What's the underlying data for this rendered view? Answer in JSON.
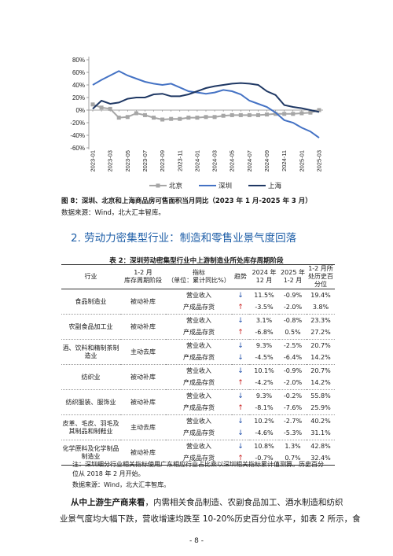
{
  "figure": {
    "caption": "图 8：深圳、北京和上海商品房可售面积当月同比（2023 年 1 月-2025 年 3 月）",
    "source": "数据来源：Wind，北大汇丰智库。"
  },
  "chart_data": {
    "type": "line",
    "x": [
      "2023-01",
      "2023-02",
      "2023-03",
      "2023-04",
      "2023-05",
      "2023-06",
      "2023-07",
      "2023-08",
      "2023-09",
      "2023-10",
      "2023-11",
      "2023-12",
      "2024-01",
      "2024-02",
      "2024-03",
      "2024-04",
      "2024-05",
      "2024-06",
      "2024-07",
      "2024-08",
      "2024-09",
      "2024-10",
      "2024-11",
      "2024-12",
      "2025-01",
      "2025-02",
      "2025-03"
    ],
    "x_tick_labels": [
      "2023-01",
      "2023-03",
      "2023-05",
      "2023-07",
      "2023-09",
      "2023-11",
      "2024-01",
      "2024-03",
      "2024-05",
      "2024-07",
      "2024-09",
      "2024-11",
      "2025-01",
      "2025-03"
    ],
    "ylim": [
      -60,
      80
    ],
    "y_ticks": [
      80,
      60,
      40,
      20,
      0,
      -20,
      -40,
      -60
    ],
    "y_tick_labels": [
      "80%",
      "60%",
      "40%",
      "20%",
      "0%",
      "-20%",
      "-40%",
      "-60%"
    ],
    "series": [
      {
        "name": "北京",
        "color": "#a6a6a6",
        "values": [
          9,
          4,
          2,
          -12,
          -11,
          -5,
          -8,
          -12,
          -15,
          -14,
          -14,
          -12,
          -12,
          -11,
          -11,
          -9,
          -8,
          -8,
          -8,
          -8,
          -7,
          -6,
          -6,
          -6,
          -5,
          -4,
          0
        ]
      },
      {
        "name": "深圳",
        "color": "#4472c4",
        "values": [
          40,
          48,
          55,
          62,
          55,
          50,
          45,
          42,
          40,
          42,
          36,
          30,
          28,
          26,
          28,
          32,
          30,
          25,
          15,
          10,
          5,
          -4,
          -16,
          -20,
          -28,
          -34,
          -44
        ]
      },
      {
        "name": "上海",
        "color": "#1f3864",
        "values": [
          2,
          15,
          10,
          12,
          18,
          20,
          20,
          25,
          26,
          22,
          22,
          25,
          30,
          35,
          38,
          40,
          42,
          43,
          42,
          40,
          30,
          24,
          8,
          5,
          3,
          0,
          -3
        ]
      }
    ]
  },
  "section": {
    "title": "2. 劳动力密集型行业：制造和零售业景气度回落"
  },
  "table": {
    "title": "表 2：深圳劳动密集型行业中上游制造业所处库存周期阶段",
    "headers": {
      "industry": "行业",
      "cycle_line1": "1-2 月",
      "cycle_line2": "库存周期阶段",
      "indicator_line1": "指标",
      "indicator_line2": "（单位：累计同比%）",
      "trend": "趋势",
      "y2024_line1": "2024 年",
      "y2024_line2": "12 月",
      "y2025_line1": "2025 年",
      "y2025_line2": "1-2 月",
      "pct_line1": "1-2 月所处历史百",
      "pct_line2": "分位"
    },
    "groups": [
      {
        "industry": "食品制造业",
        "stage": "被动补库",
        "rows": [
          {
            "indicator": "营业收入",
            "trend": "↓",
            "v2024": "11.5%",
            "v2025": "-0.9%",
            "pct": "19.4%"
          },
          {
            "indicator": "产成品存货",
            "trend": "↑",
            "v2024": "-3.5%",
            "v2025": "-2.0%",
            "pct": "3.8%"
          }
        ]
      },
      {
        "industry": "农副食品加工业",
        "stage": "被动补库",
        "rows": [
          {
            "indicator": "营业收入",
            "trend": "↓",
            "v2024": "3.1%",
            "v2025": "-0.8%",
            "pct": "23.3%"
          },
          {
            "indicator": "产成品存货",
            "trend": "↑",
            "v2024": "-6.8%",
            "v2025": "0.5%",
            "pct": "27.2%"
          }
        ]
      },
      {
        "industry": "酒、饮料和精制茶制造业",
        "stage": "主动去库",
        "rows": [
          {
            "indicator": "营业收入",
            "trend": "↓",
            "v2024": "9.3%",
            "v2025": "-2.5%",
            "pct": "20.7%"
          },
          {
            "indicator": "产成品存货",
            "trend": "↓",
            "v2024": "-4.5%",
            "v2025": "-6.4%",
            "pct": "14.2%"
          }
        ]
      },
      {
        "industry": "纺织业",
        "stage": "被动补库",
        "rows": [
          {
            "indicator": "营业收入",
            "trend": "↓",
            "v2024": "10.1%",
            "v2025": "-0.9%",
            "pct": "20.7%"
          },
          {
            "indicator": "产成品存货",
            "trend": "↑",
            "v2024": "-4.2%",
            "v2025": "-2.0%",
            "pct": "14.2%"
          }
        ]
      },
      {
        "industry": "纺织服装、服饰业",
        "stage": "被动补库",
        "rows": [
          {
            "indicator": "营业收入",
            "trend": "↓",
            "v2024": "9.3%",
            "v2025": "-0.2%",
            "pct": "55.8%"
          },
          {
            "indicator": "产成品存货",
            "trend": "↑",
            "v2024": "-8.1%",
            "v2025": "-7.6%",
            "pct": "25.9%"
          }
        ]
      },
      {
        "industry": "皮革、毛皮、羽毛及其制品和制鞋业",
        "stage": "主动去库",
        "rows": [
          {
            "indicator": "营业收入",
            "trend": "↓",
            "v2024": "10.2%",
            "v2025": "-2.7%",
            "pct": "40.2%"
          },
          {
            "indicator": "产成品存货",
            "trend": "↓",
            "v2024": "-4.6%",
            "v2025": "-5.3%",
            "pct": "31.1%"
          }
        ]
      },
      {
        "industry": "化学原料及化学制品制造业",
        "stage": "被动补库",
        "rows": [
          {
            "indicator": "营业收入",
            "trend": "↓",
            "v2024": "10.8%",
            "v2025": "1.3%",
            "pct": "42.8%"
          },
          {
            "indicator": "产成品存货",
            "trend": "↑",
            "v2024": "-0.7%",
            "v2025": "0.7%",
            "pct": "32.4%"
          }
        ]
      }
    ],
    "note_line1": "注：深圳细分行业相关指标使用广东相应行业占比乘以深圳相关指标累计值测算。历史百分",
    "note_line2": "位从 2018 年 2 月开始。",
    "source": "数据来源：Wind，北大汇丰智库。"
  },
  "body": {
    "lead": "从中上游生产商来看",
    "line1_rest": "，内需相关食品制造、农副食品加工、酒水制造和纺织",
    "line2": "业景气度均大幅下跌，营收增速均跌至 10-20%历史百分位水平，如表 2 所示，食"
  },
  "page_number": "- 8 -",
  "colors": {
    "accent_title": "#1f5fa8",
    "arrow_down": "#1f4ea8",
    "arrow_up": "#c81e1e"
  }
}
